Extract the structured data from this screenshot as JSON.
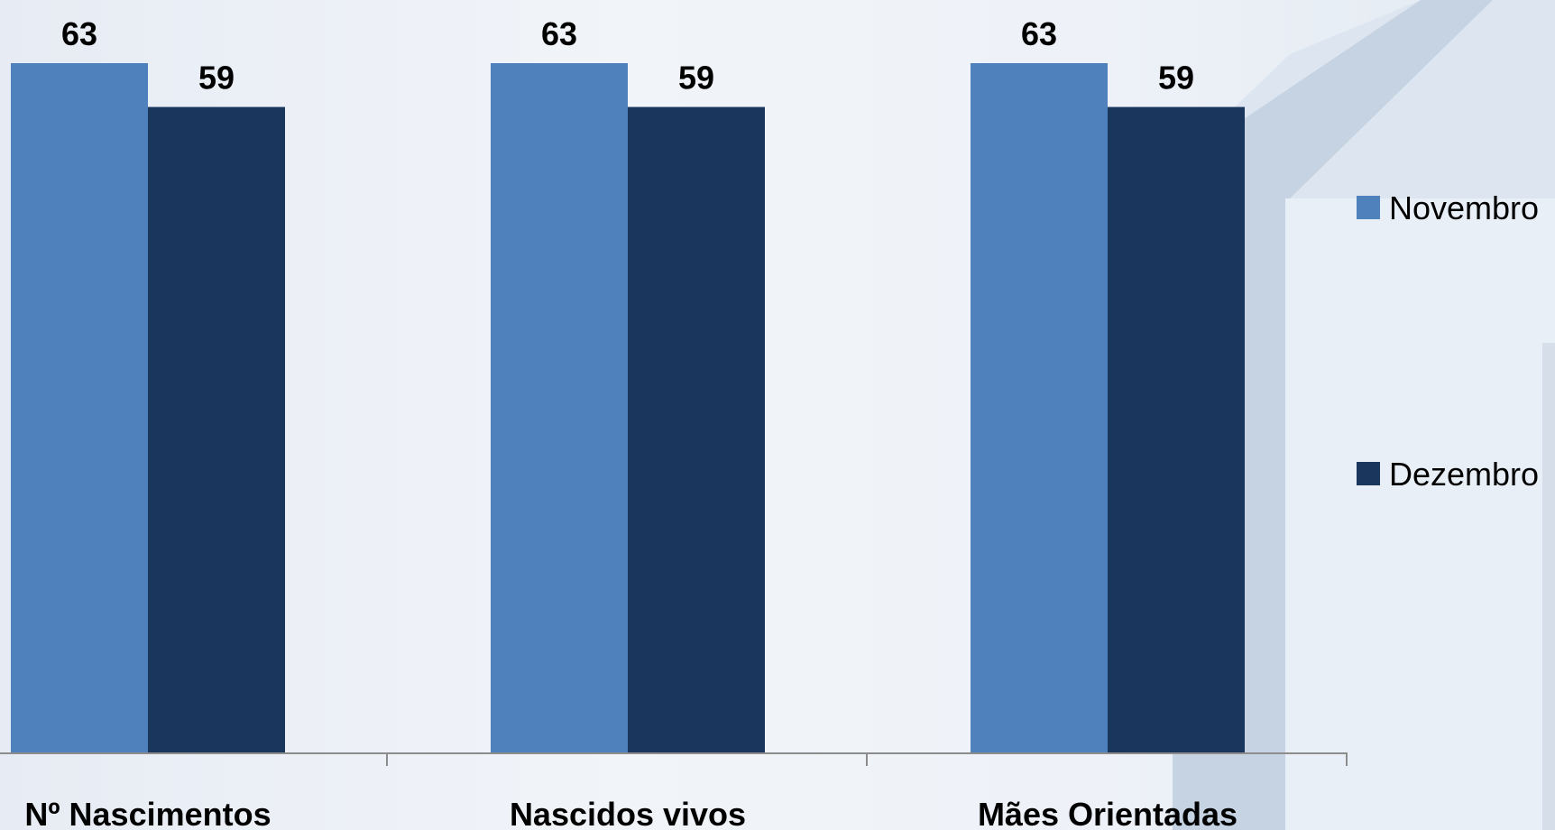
{
  "chart_data": {
    "type": "bar",
    "categories": [
      "Nº Nascimentos",
      "Nascidos vivos",
      "Mães Orientadas"
    ],
    "series": [
      {
        "name": "Novembro",
        "values": [
          63,
          63,
          63
        ],
        "color": "#4f81bd"
      },
      {
        "name": "Dezembro",
        "values": [
          59,
          59,
          59
        ],
        "color": "#1a365d"
      }
    ],
    "ylim": [
      0,
      63
    ],
    "grid": false,
    "legend_position": "right",
    "data_labels": true
  },
  "colors": {
    "axis": "#8c8c8c",
    "background_accent": "#c5d3e2"
  }
}
